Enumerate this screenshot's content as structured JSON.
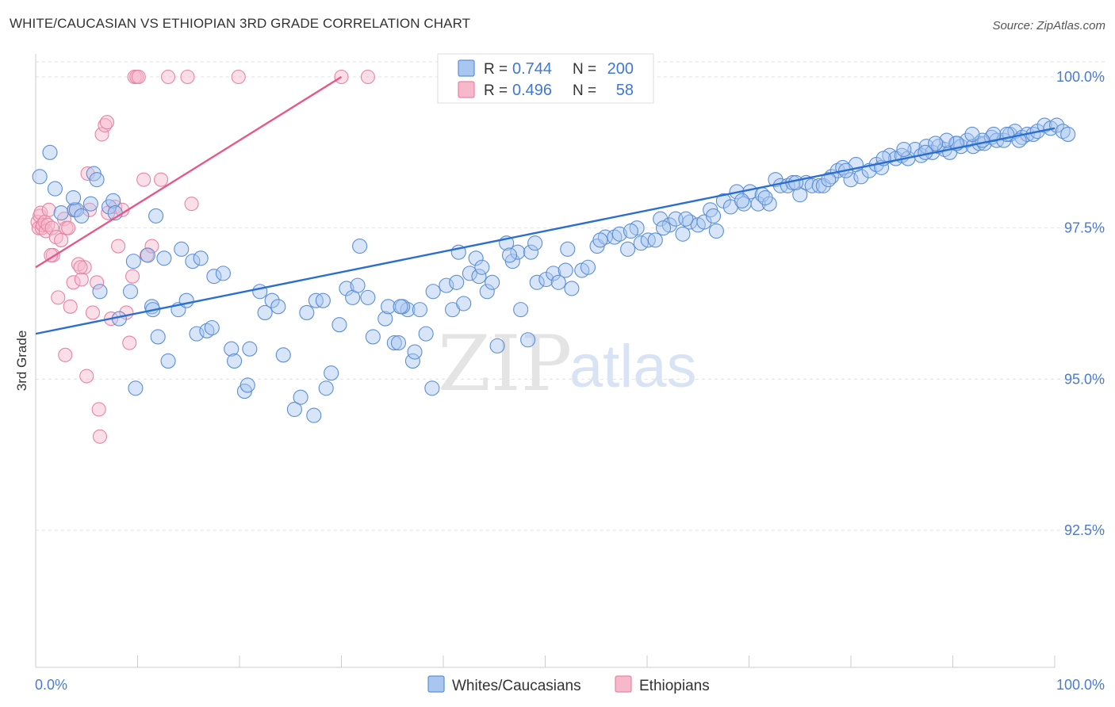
{
  "title": "WHITE/CAUCASIAN VS ETHIOPIAN 3RD GRADE CORRELATION CHART",
  "source": "Source: ZipAtlas.com",
  "watermark": {
    "zip": "ZIP",
    "atlas": "atlas"
  },
  "legend_top": [
    {
      "r_label": "R =",
      "r_value": "0.744",
      "n_label": "N =",
      "n_value": "200"
    },
    {
      "r_label": "R =",
      "r_value": "0.496",
      "n_label": "N =",
      "n_value": "58"
    }
  ],
  "legend_bottom": [
    "Whites/Caucasians",
    "Ethiopians"
  ],
  "colors": {
    "blue_fill": "#a9c6f0",
    "blue_stroke": "#5b8fd6",
    "blue_line": "#2a6fd0",
    "pink_fill": "#f7b8cc",
    "pink_stroke": "#e884a4",
    "pink_line": "#e8578a",
    "tick_text": "#4a7bd0",
    "grid": "#e2e2e2"
  },
  "chart_data": {
    "type": "scatter",
    "title": "WHITE/CAUCASIAN VS ETHIOPIAN 3RD GRADE CORRELATION CHART",
    "xlabel": "",
    "ylabel": "3rd Grade",
    "xlim": [
      0,
      100
    ],
    "ylim": [
      90.0,
      100.4
    ],
    "x_tick_labels": [
      "0.0%",
      "100.0%"
    ],
    "y_ticks": [
      92.5,
      95.0,
      97.5,
      100.0
    ],
    "y_tick_labels": [
      "92.5%",
      "95.0%",
      "97.5%",
      "100.0%"
    ],
    "grid": "horizontal dashed",
    "legend_position": "top-center",
    "series": [
      {
        "name": "Whites/Caucasians",
        "r": 0.744,
        "n": 200,
        "trend": {
          "x": [
            0.0,
            100.0
          ],
          "y": [
            95.75,
            99.15
          ]
        },
        "points": [
          [
            0.4,
            98.35
          ],
          [
            1.4,
            98.75
          ],
          [
            1.9,
            98.15
          ],
          [
            2.5,
            97.75
          ],
          [
            3.8,
            97.8
          ],
          [
            4.0,
            97.8
          ],
          [
            3.7,
            98.0
          ],
          [
            4.5,
            97.7
          ],
          [
            5.4,
            97.9
          ],
          [
            5.7,
            98.4
          ],
          [
            6.0,
            98.3
          ],
          [
            7.2,
            97.85
          ],
          [
            7.6,
            97.95
          ],
          [
            7.8,
            97.75
          ],
          [
            6.3,
            96.45
          ],
          [
            8.2,
            96.0
          ],
          [
            9.3,
            96.45
          ],
          [
            9.6,
            96.95
          ],
          [
            9.8,
            94.85
          ],
          [
            11.0,
            97.05
          ],
          [
            12.0,
            95.7
          ],
          [
            11.8,
            97.7
          ],
          [
            12.6,
            97.0
          ],
          [
            11.4,
            96.2
          ],
          [
            11.5,
            96.15
          ],
          [
            13.0,
            95.3
          ],
          [
            14.0,
            96.15
          ],
          [
            14.8,
            96.3
          ],
          [
            14.3,
            97.15
          ],
          [
            15.4,
            96.95
          ],
          [
            15.8,
            95.75
          ],
          [
            16.2,
            97.0
          ],
          [
            16.8,
            95.8
          ],
          [
            17.3,
            95.85
          ],
          [
            17.5,
            96.7
          ],
          [
            18.4,
            96.75
          ],
          [
            19.2,
            95.5
          ],
          [
            19.5,
            95.3
          ],
          [
            20.5,
            94.8
          ],
          [
            20.8,
            94.9
          ],
          [
            21.0,
            95.5
          ],
          [
            22.0,
            96.45
          ],
          [
            22.5,
            96.1
          ],
          [
            23.2,
            96.3
          ],
          [
            23.8,
            96.2
          ],
          [
            24.3,
            95.4
          ],
          [
            25.4,
            94.5
          ],
          [
            26.0,
            94.7
          ],
          [
            26.6,
            96.1
          ],
          [
            27.3,
            94.4
          ],
          [
            27.5,
            96.3
          ],
          [
            28.2,
            96.3
          ],
          [
            28.5,
            94.85
          ],
          [
            29.0,
            95.1
          ],
          [
            29.8,
            95.9
          ],
          [
            30.5,
            96.5
          ],
          [
            31.1,
            96.35
          ],
          [
            31.6,
            96.55
          ],
          [
            31.8,
            97.2
          ],
          [
            32.6,
            96.35
          ],
          [
            33.1,
            95.7
          ],
          [
            34.3,
            96.0
          ],
          [
            34.6,
            96.2
          ],
          [
            35.2,
            95.6
          ],
          [
            35.6,
            95.6
          ],
          [
            36.5,
            96.15
          ],
          [
            37.0,
            95.3
          ],
          [
            37.2,
            95.45
          ],
          [
            37.7,
            96.15
          ],
          [
            38.3,
            95.75
          ],
          [
            39.0,
            96.45
          ],
          [
            38.9,
            94.85
          ],
          [
            36.0,
            96.2
          ],
          [
            35.8,
            96.2
          ],
          [
            40.3,
            96.55
          ],
          [
            40.9,
            96.15
          ],
          [
            41.3,
            96.6
          ],
          [
            42.0,
            96.25
          ],
          [
            41.5,
            97.1
          ],
          [
            42.6,
            96.75
          ],
          [
            43.5,
            96.7
          ],
          [
            43.2,
            97.0
          ],
          [
            44.3,
            96.45
          ],
          [
            44.8,
            96.6
          ],
          [
            45.3,
            95.55
          ],
          [
            46.2,
            97.25
          ],
          [
            46.8,
            96.95
          ],
          [
            47.3,
            97.1
          ],
          [
            47.6,
            96.15
          ],
          [
            48.3,
            95.65
          ],
          [
            48.6,
            97.1
          ],
          [
            49.2,
            96.6
          ],
          [
            50.1,
            96.65
          ],
          [
            50.8,
            96.75
          ],
          [
            51.3,
            96.6
          ],
          [
            52.0,
            96.8
          ],
          [
            52.6,
            96.5
          ],
          [
            53.6,
            96.8
          ],
          [
            54.2,
            96.85
          ],
          [
            55.1,
            97.2
          ],
          [
            55.9,
            97.35
          ],
          [
            56.8,
            97.35
          ],
          [
            57.3,
            97.4
          ],
          [
            58.1,
            97.15
          ],
          [
            59.0,
            97.5
          ],
          [
            59.4,
            97.25
          ],
          [
            60.1,
            97.3
          ],
          [
            60.8,
            97.3
          ],
          [
            61.3,
            97.65
          ],
          [
            62.2,
            97.55
          ],
          [
            62.8,
            97.65
          ],
          [
            63.5,
            97.4
          ],
          [
            64.2,
            97.6
          ],
          [
            65.0,
            97.55
          ],
          [
            65.6,
            97.6
          ],
          [
            66.2,
            97.8
          ],
          [
            66.8,
            97.45
          ],
          [
            67.5,
            97.95
          ],
          [
            68.2,
            97.85
          ],
          [
            68.8,
            98.1
          ],
          [
            69.5,
            97.9
          ],
          [
            70.1,
            98.1
          ],
          [
            70.9,
            97.9
          ],
          [
            71.3,
            98.05
          ],
          [
            72.0,
            97.9
          ],
          [
            72.6,
            98.3
          ],
          [
            73.1,
            98.2
          ],
          [
            73.8,
            98.2
          ],
          [
            74.3,
            98.25
          ],
          [
            75.0,
            98.05
          ],
          [
            75.6,
            98.25
          ],
          [
            76.2,
            98.2
          ],
          [
            76.9,
            98.2
          ],
          [
            77.3,
            98.2
          ],
          [
            78.1,
            98.35
          ],
          [
            78.7,
            98.45
          ],
          [
            79.2,
            98.5
          ],
          [
            80.0,
            98.3
          ],
          [
            80.5,
            98.55
          ],
          [
            81.0,
            98.35
          ],
          [
            81.8,
            98.45
          ],
          [
            82.5,
            98.55
          ],
          [
            83.0,
            98.5
          ],
          [
            83.8,
            98.7
          ],
          [
            84.4,
            98.65
          ],
          [
            85.0,
            98.7
          ],
          [
            85.6,
            98.65
          ],
          [
            86.3,
            98.8
          ],
          [
            86.9,
            98.7
          ],
          [
            87.4,
            98.85
          ],
          [
            88.0,
            98.75
          ],
          [
            88.6,
            98.85
          ],
          [
            89.2,
            98.8
          ],
          [
            89.7,
            98.75
          ],
          [
            90.3,
            98.9
          ],
          [
            90.8,
            98.85
          ],
          [
            91.4,
            98.95
          ],
          [
            92.0,
            98.85
          ],
          [
            92.6,
            98.9
          ],
          [
            93.1,
            98.9
          ],
          [
            93.8,
            99.0
          ],
          [
            94.3,
            98.95
          ],
          [
            95.0,
            98.95
          ],
          [
            95.6,
            99.05
          ],
          [
            96.1,
            99.1
          ],
          [
            96.8,
            99.0
          ],
          [
            97.3,
            99.05
          ],
          [
            97.9,
            99.05
          ],
          [
            98.3,
            99.1
          ],
          [
            99.0,
            99.2
          ],
          [
            99.6,
            99.15
          ],
          [
            100.2,
            99.2
          ],
          [
            100.8,
            99.1
          ],
          [
            101.3,
            99.05
          ],
          [
            96.5,
            98.95
          ],
          [
            95.3,
            99.05
          ],
          [
            94.0,
            99.05
          ],
          [
            92.9,
            98.95
          ],
          [
            91.9,
            99.05
          ],
          [
            90.4,
            98.9
          ],
          [
            89.4,
            98.95
          ],
          [
            88.3,
            98.9
          ],
          [
            87.3,
            98.75
          ],
          [
            85.2,
            98.8
          ],
          [
            83.2,
            98.65
          ],
          [
            79.5,
            98.45
          ],
          [
            77.8,
            98.3
          ],
          [
            74.6,
            98.25
          ],
          [
            71.6,
            98.0
          ],
          [
            69.3,
            97.95
          ],
          [
            66.5,
            97.7
          ],
          [
            63.8,
            97.65
          ],
          [
            61.6,
            97.5
          ],
          [
            58.4,
            97.45
          ],
          [
            55.4,
            97.3
          ],
          [
            52.2,
            97.15
          ],
          [
            49.0,
            97.25
          ],
          [
            46.5,
            97.05
          ],
          [
            43.8,
            96.85
          ]
        ]
      },
      {
        "name": "Ethiopians",
        "r": 0.496,
        "n": 58,
        "trend": {
          "x": [
            0.0,
            30.0
          ],
          "y": [
            96.85,
            100.0
          ]
        },
        "points": [
          [
            0.2,
            97.6
          ],
          [
            0.3,
            97.5
          ],
          [
            0.4,
            97.7
          ],
          [
            0.5,
            97.75
          ],
          [
            0.6,
            97.5
          ],
          [
            0.7,
            97.55
          ],
          [
            0.9,
            97.6
          ],
          [
            1.0,
            97.45
          ],
          [
            1.2,
            97.55
          ],
          [
            1.3,
            97.8
          ],
          [
            1.6,
            97.5
          ],
          [
            1.7,
            97.05
          ],
          [
            2.0,
            97.35
          ],
          [
            2.2,
            96.35
          ],
          [
            2.5,
            97.3
          ],
          [
            2.8,
            97.65
          ],
          [
            3.0,
            97.5
          ],
          [
            3.2,
            97.5
          ],
          [
            3.4,
            96.2
          ],
          [
            3.7,
            96.6
          ],
          [
            3.8,
            97.8
          ],
          [
            4.2,
            96.9
          ],
          [
            4.5,
            96.65
          ],
          [
            4.8,
            96.85
          ],
          [
            5.0,
            95.05
          ],
          [
            5.3,
            97.8
          ],
          [
            5.6,
            96.1
          ],
          [
            6.0,
            96.6
          ],
          [
            6.2,
            94.5
          ],
          [
            6.3,
            94.05
          ],
          [
            6.5,
            99.05
          ],
          [
            6.8,
            99.2
          ],
          [
            7.0,
            99.25
          ],
          [
            7.4,
            96.0
          ],
          [
            7.8,
            97.85
          ],
          [
            8.1,
            97.2
          ],
          [
            8.5,
            97.8
          ],
          [
            8.9,
            96.1
          ],
          [
            9.2,
            95.6
          ],
          [
            9.5,
            96.7
          ],
          [
            9.7,
            100.0
          ],
          [
            9.9,
            100.0
          ],
          [
            10.1,
            100.0
          ],
          [
            10.6,
            98.3
          ],
          [
            10.9,
            97.05
          ],
          [
            11.4,
            97.2
          ],
          [
            12.3,
            98.3
          ],
          [
            13.0,
            100.0
          ],
          [
            14.9,
            100.0
          ],
          [
            15.3,
            97.9
          ],
          [
            19.9,
            100.0
          ],
          [
            30.0,
            100.0
          ],
          [
            32.6,
            100.0
          ],
          [
            2.9,
            95.4
          ],
          [
            5.1,
            98.4
          ],
          [
            7.1,
            97.75
          ],
          [
            1.5,
            97.05
          ],
          [
            4.4,
            96.85
          ]
        ]
      }
    ]
  }
}
